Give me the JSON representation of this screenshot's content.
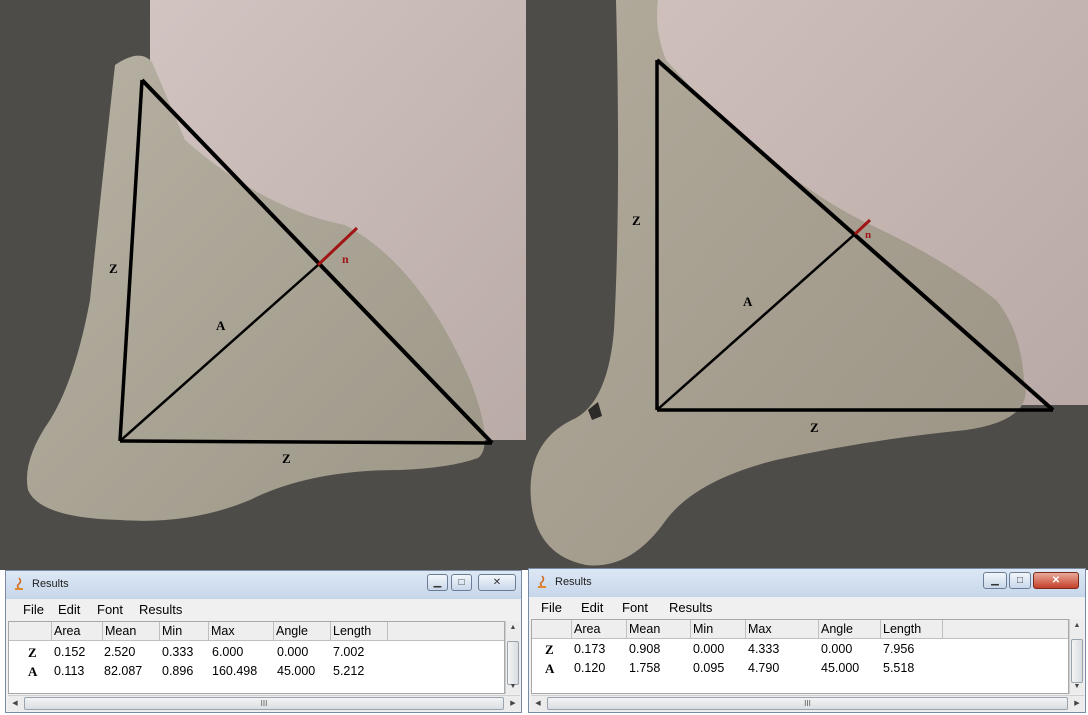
{
  "panels": [
    {
      "annotations": {
        "z_vertical": "Z",
        "z_horizontal": "Z",
        "a_line": "A",
        "n_mark": "n"
      },
      "window": {
        "title": "Results",
        "menu": [
          "File",
          "Edit",
          "Font",
          "Results"
        ],
        "columns": [
          "",
          "Area",
          "Mean",
          "Min",
          "Max",
          "Angle",
          "Length"
        ],
        "rows": [
          [
            "Z",
            "0.152",
            "2.520",
            "0.333",
            "6.000",
            "0.000",
            "7.002"
          ],
          [
            "A",
            "0.113",
            "82.087",
            "0.896",
            "160.498",
            "45.000",
            "5.212"
          ]
        ],
        "scrollbar_grip": "III"
      }
    },
    {
      "annotations": {
        "z_vertical": "Z",
        "z_horizontal": "Z",
        "a_line": "A",
        "n_mark": "n"
      },
      "window": {
        "title": "Results",
        "menu": [
          "File",
          "Edit",
          "Font",
          "Results"
        ],
        "columns": [
          "",
          "Area",
          "Mean",
          "Min",
          "Max",
          "Angle",
          "Length"
        ],
        "rows": [
          [
            "Z",
            "0.173",
            "0.908",
            "0.000",
            "4.333",
            "0.000",
            "7.956"
          ],
          [
            "A",
            "0.120",
            "1.758",
            "0.095",
            "4.790",
            "45.000",
            "5.518"
          ]
        ],
        "scrollbar_grip": "III"
      }
    }
  ],
  "colors": {
    "background_metal": "#4e4c48",
    "weld": "#aaa495",
    "backdrop": "#c8bab6",
    "lines": "#000000",
    "red_mark": "#a01515"
  }
}
